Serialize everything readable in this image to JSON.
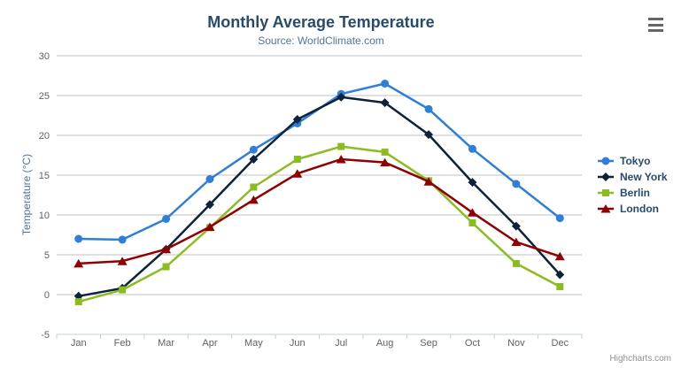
{
  "chart": {
    "credit": "Highcharts.com"
  },
  "colors": {
    "title": "#274b6d",
    "subtitle": "#4d759e",
    "axis_title": "#4d759e",
    "axis_labels": "#606060",
    "gridline": "#c0c0c0",
    "axis_line": "#c0d0e0",
    "legend_text": "#274b6d",
    "credit": "#909090",
    "menu_icon": "#666666"
  },
  "chart_data": {
    "type": "line",
    "title": "Monthly Average Temperature",
    "subtitle": "Source: WorldClimate.com",
    "xlabel": "",
    "ylabel": "Temperature (°C)",
    "ylim": [
      -5,
      30
    ],
    "ytick_interval": 5,
    "grid": true,
    "legend_position": "right",
    "categories": [
      "Jan",
      "Feb",
      "Mar",
      "Apr",
      "May",
      "Jun",
      "Jul",
      "Aug",
      "Sep",
      "Oct",
      "Nov",
      "Dec"
    ],
    "series": [
      {
        "name": "Tokyo",
        "color": "#2f7ed8",
        "marker": "circle",
        "values": [
          7.0,
          6.9,
          9.5,
          14.5,
          18.2,
          21.5,
          25.2,
          26.5,
          23.3,
          18.3,
          13.9,
          9.6
        ]
      },
      {
        "name": "New York",
        "color": "#0d233a",
        "marker": "diamond",
        "values": [
          -0.2,
          0.8,
          5.7,
          11.3,
          17.0,
          22.0,
          24.8,
          24.1,
          20.1,
          14.1,
          8.6,
          2.5
        ]
      },
      {
        "name": "Berlin",
        "color": "#8bbc21",
        "marker": "square",
        "values": [
          -0.9,
          0.6,
          3.5,
          8.4,
          13.5,
          17.0,
          18.6,
          17.9,
          14.3,
          9.0,
          3.9,
          1.0
        ]
      },
      {
        "name": "London",
        "color": "#910000",
        "marker": "triangle",
        "values": [
          3.9,
          4.2,
          5.7,
          8.5,
          11.9,
          15.2,
          17.0,
          16.6,
          14.2,
          10.3,
          6.6,
          4.8
        ]
      }
    ]
  }
}
